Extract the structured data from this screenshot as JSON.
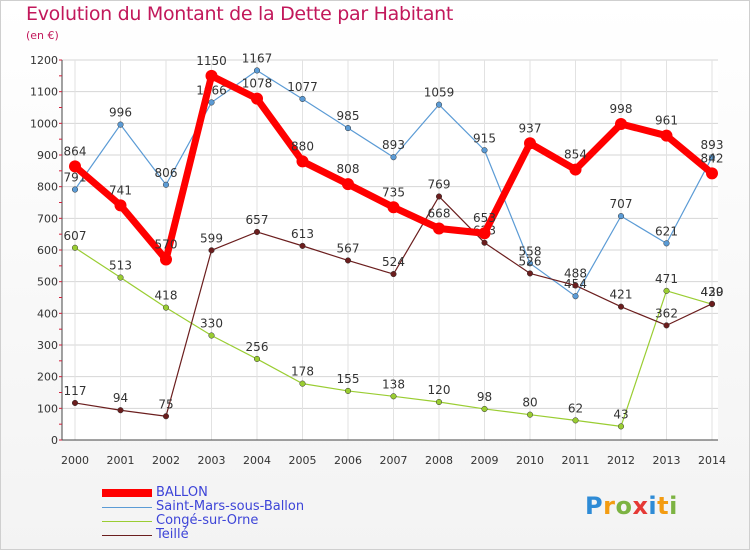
{
  "header": {
    "title": "Evolution du Montant de la Dette par Habitant",
    "subtitle": "(en €)"
  },
  "brand": {
    "logo_letters": [
      "P",
      "r",
      "o",
      "x",
      "i",
      "t",
      "i"
    ]
  },
  "chart_data": {
    "type": "line",
    "title": "Evolution du Montant de la Dette par Habitant",
    "ylabel": "(en €)",
    "ylim": [
      0,
      1200
    ],
    "yticks": [
      0,
      100,
      200,
      300,
      400,
      500,
      600,
      700,
      800,
      900,
      1000,
      1100,
      1200
    ],
    "x": [
      "2000",
      "2001",
      "2002",
      "2003",
      "2004",
      "2005",
      "2006",
      "2007",
      "2008",
      "2009",
      "2010",
      "2011",
      "2012",
      "2013",
      "2014"
    ],
    "grid": true,
    "series": [
      {
        "name": "Saint-Mars-sous-Ballon",
        "color": "#5b9bd5",
        "values": [
          791,
          996,
          806,
          1066,
          1167,
          1077,
          985,
          893,
          1059,
          915,
          558,
          454,
          707,
          621,
          893
        ]
      },
      {
        "name": "Congé-sur-Orne",
        "color": "#9acd32",
        "values": [
          607,
          513,
          418,
          330,
          256,
          178,
          155,
          138,
          120,
          98,
          80,
          62,
          43,
          471,
          429
        ]
      },
      {
        "name": "Teillé",
        "color": "#6b1e1e",
        "values": [
          117,
          94,
          75,
          599,
          657,
          613,
          567,
          524,
          769,
          623,
          526,
          488,
          421,
          362,
          430
        ]
      },
      {
        "name": "BALLON",
        "color": "#ff0000",
        "values": [
          864,
          741,
          570,
          1150,
          1078,
          880,
          808,
          735,
          668,
          653,
          937,
          854,
          998,
          961,
          842
        ]
      }
    ],
    "legend_order": [
      "BALLON",
      "Saint-Mars-sous-Ballon",
      "Congé-sur-Orne",
      "Teillé"
    ]
  }
}
